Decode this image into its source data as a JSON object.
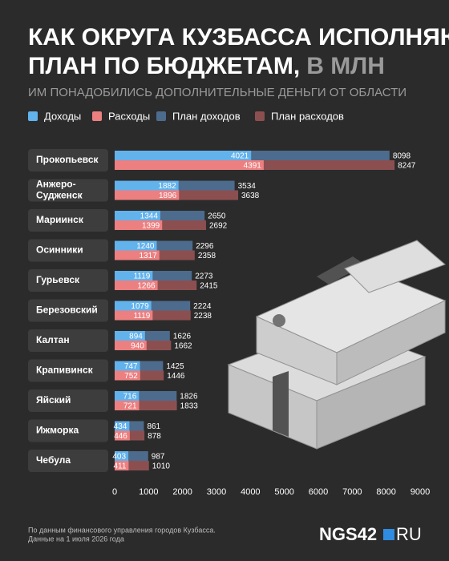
{
  "chart_data": {
    "type": "bar",
    "title": [
      "КАК ОКРУГА КУЗБАССА ИСПОЛНЯЮТ",
      "ПЛАН ПО БЮДЖЕТАМ,"
    ],
    "title_unit": "В МЛН",
    "subtitle": "ИМ ПОНАДОБИЛИСЬ ДОПОЛНИТЕЛЬНЫЕ ДЕНЬГИ ОТ ОБЛАСТИ",
    "categories": [
      "Прокопьевск",
      "Анжеро-Судженск",
      "Мариинск",
      "Осинники",
      "Гурьевск",
      "Березовский",
      "Калтан",
      "Крапивинск",
      "Яйский",
      "Ижморка",
      "Чебула"
    ],
    "series": [
      {
        "name": "Доходы",
        "color": "#62b2ec",
        "values": [
          4021,
          1882,
          1344,
          1240,
          1119,
          1079,
          894,
          747,
          716,
          434,
          403
        ]
      },
      {
        "name": "Расходы",
        "color": "#ec7f80",
        "values": [
          4391,
          1896,
          1399,
          1317,
          1266,
          1119,
          940,
          752,
          721,
          446,
          411
        ]
      },
      {
        "name": "План доходов",
        "color": "#4d6b8c",
        "values": [
          8098,
          3534,
          2650,
          2296,
          2273,
          2224,
          1626,
          1425,
          1826,
          861,
          987
        ]
      },
      {
        "name": "План расходов",
        "color": "#8c4f50",
        "values": [
          8247,
          3638,
          2692,
          2358,
          2415,
          2238,
          1662,
          1446,
          1833,
          878,
          1010
        ]
      }
    ],
    "xlim": [
      0,
      9000
    ],
    "xticks": [
      0,
      1000,
      2000,
      3000,
      4000,
      5000,
      6000,
      7000,
      8000,
      9000
    ],
    "grid": false,
    "source": [
      "По данным финансового управления городов Кузбасса.",
      "Данные на 1 июля 2026 года"
    ],
    "logo": "NGS42",
    "logo_suffix": "RU"
  }
}
